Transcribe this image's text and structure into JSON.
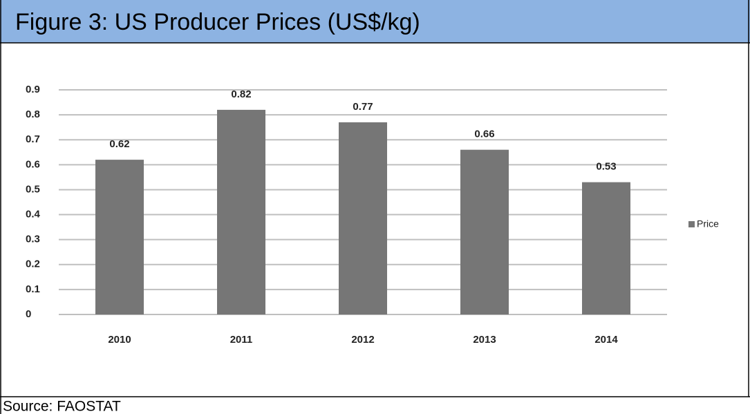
{
  "chart_data": {
    "type": "bar",
    "title": "Figure 3: US Producer Prices (US$/kg)",
    "categories": [
      "2010",
      "2011",
      "2012",
      "2013",
      "2014"
    ],
    "series": [
      {
        "name": "Price",
        "color": "#767676",
        "values": [
          0.62,
          0.82,
          0.77,
          0.66,
          0.53
        ]
      }
    ],
    "ylim": [
      0,
      0.9
    ],
    "yticks": [
      0,
      0.1,
      0.2,
      0.3,
      0.4,
      0.5,
      0.6,
      0.7,
      0.8,
      0.9
    ],
    "grid": true,
    "legend": "right",
    "source": "Source: FAOSTAT"
  }
}
